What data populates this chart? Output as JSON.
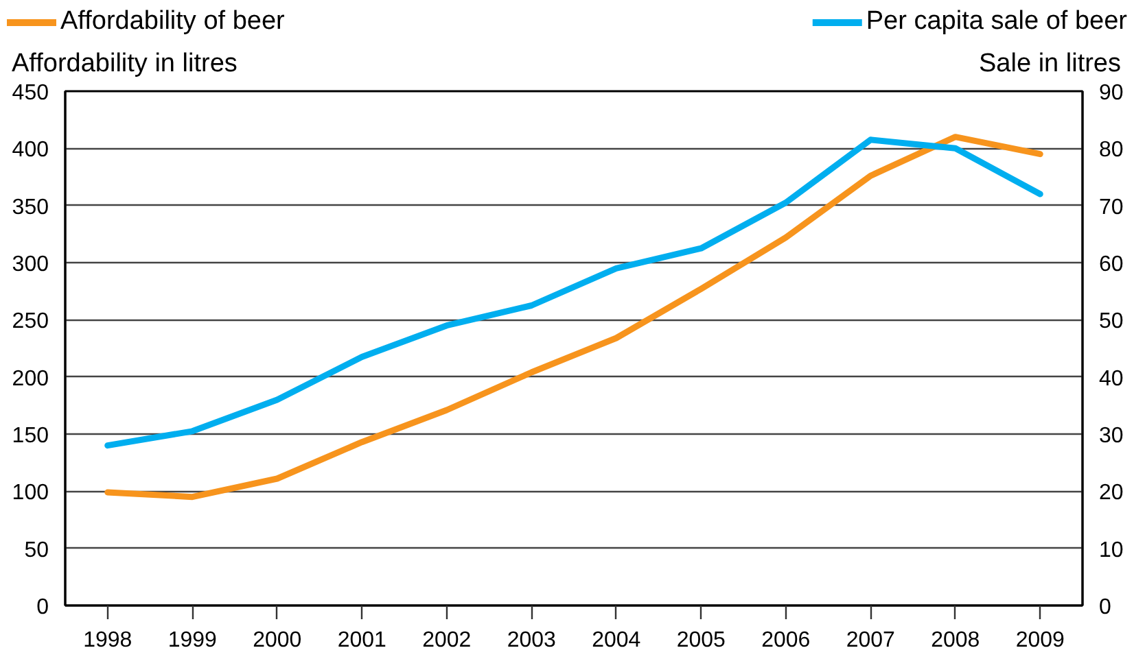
{
  "chart_data": {
    "type": "line",
    "categories": [
      "1998",
      "1999",
      "2000",
      "2001",
      "2002",
      "2003",
      "2004",
      "2005",
      "2006",
      "2007",
      "2008",
      "2009"
    ],
    "ylabel": "Affordability in litres",
    "y2label": "Sale in litres",
    "ylim": [
      0,
      450
    ],
    "yticks": [
      0,
      50,
      100,
      150,
      200,
      250,
      300,
      350,
      400,
      450
    ],
    "y2lim": [
      0,
      90
    ],
    "y2ticks": [
      0,
      10,
      20,
      30,
      40,
      50,
      60,
      70,
      80,
      90
    ],
    "grid": "y",
    "legend": "top",
    "series": [
      {
        "name": "Affordability of beer",
        "color": "#f7941d",
        "values": [
          99,
          95,
          111,
          143,
          171,
          204,
          234,
          277,
          322,
          376,
          410,
          395
        ]
      },
      {
        "name": "Per capita sale of beer",
        "color": "#00aeef",
        "axis": "y2",
        "values": [
          28,
          30.5,
          36,
          43.5,
          49,
          52.5,
          59,
          62.5,
          70.5,
          81.5,
          80,
          72
        ]
      }
    ]
  }
}
